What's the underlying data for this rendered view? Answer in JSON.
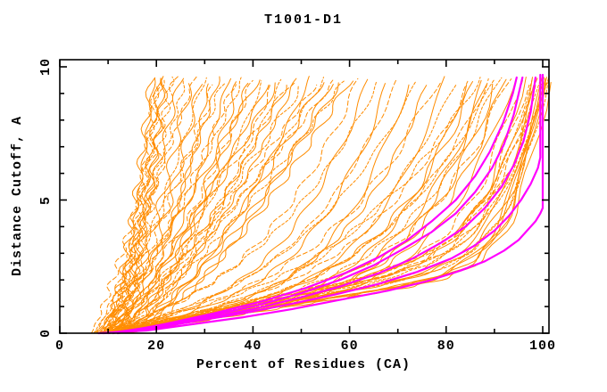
{
  "colors": {
    "background": "#ffffff",
    "axis": "#000000",
    "orange_curves": "#ff8c00",
    "magenta_curves": "#ff00ff"
  },
  "chart_data": {
    "type": "line",
    "title": "T1001-D1",
    "xlabel": "Percent of Residues (CA)",
    "ylabel": "Distance Cutoff, A",
    "xlim": [
      0,
      101.4
    ],
    "ylim": [
      0,
      10.3
    ],
    "x_ticks_major": [
      0,
      20,
      40,
      60,
      80,
      100
    ],
    "x_tick_labels": [
      "0",
      "20",
      "40",
      "60",
      "80",
      "100"
    ],
    "x_ticks_minor": [
      10,
      30,
      50,
      70,
      90
    ],
    "y_ticks_major": [
      0,
      5,
      10
    ],
    "y_tick_labels": [
      "0",
      "5",
      "10"
    ],
    "y_ticks_minor": [
      1,
      2,
      3,
      4,
      6,
      7,
      8,
      9
    ],
    "grid": false,
    "legend": "none",
    "cutoff_max": 9.6,
    "series": [
      {
        "name": "prediction-curves",
        "color": "#ff8c00",
        "line_width": 1,
        "param_format": [
          "x_at_cutoff0",
          "x_at_cutoff_max",
          "shape_exponent",
          "linear_mix"
        ],
        "curves": [
          [
            9.5,
            19.5,
            1.6,
            0
          ],
          [
            10,
            20,
            1.5,
            0
          ],
          [
            11,
            20.5,
            1.7,
            0
          ],
          [
            10.5,
            21,
            1.45,
            0
          ],
          [
            12,
            21.5,
            1.6,
            0
          ],
          [
            9,
            20.2,
            1.8,
            0
          ],
          [
            11.5,
            22,
            1.5,
            0
          ],
          [
            13,
            23,
            1.35,
            0
          ],
          [
            8.5,
            19,
            1.7,
            0
          ],
          [
            6.5,
            24,
            1.15,
            0
          ],
          [
            8,
            25,
            1.3,
            0
          ],
          [
            9,
            26,
            1.2,
            0
          ],
          [
            10,
            27,
            1.45,
            0
          ],
          [
            7.5,
            28,
            1.1,
            0
          ],
          [
            11,
            29,
            1.5,
            0
          ],
          [
            8.5,
            30,
            1.25,
            0
          ],
          [
            12,
            31,
            1.6,
            0
          ],
          [
            9.5,
            32,
            1.2,
            0
          ],
          [
            10.5,
            33,
            1.4,
            0
          ],
          [
            7,
            34,
            1.1,
            0
          ],
          [
            11.5,
            35,
            1.55,
            0
          ],
          [
            8,
            36,
            1.3,
            0
          ],
          [
            12.5,
            37,
            1.65,
            0
          ],
          [
            9,
            38,
            1.2,
            0
          ],
          [
            13,
            39,
            1.5,
            0
          ],
          [
            10,
            40,
            1.35,
            0
          ],
          [
            7.5,
            41,
            1.15,
            0
          ],
          [
            11,
            42,
            1.5,
            0
          ],
          [
            8.5,
            43,
            1.3,
            0
          ],
          [
            12,
            44,
            1.6,
            0
          ],
          [
            9.5,
            45,
            1.25,
            0
          ],
          [
            13.5,
            46,
            1.45,
            0
          ],
          [
            10.5,
            47,
            1.35,
            0
          ],
          [
            7,
            48,
            1.1,
            0
          ],
          [
            11.5,
            49,
            1.5,
            0
          ],
          [
            8,
            50,
            1.3,
            0
          ],
          [
            12.5,
            52,
            1.6,
            0
          ],
          [
            9,
            53,
            1.2,
            0
          ],
          [
            13,
            54,
            1.4,
            0
          ],
          [
            10,
            55,
            1.3,
            0
          ],
          [
            14,
            56,
            1.55,
            0
          ],
          [
            8.5,
            57,
            1.2,
            0
          ],
          [
            11,
            58,
            1.45,
            0
          ],
          [
            9.5,
            59,
            1.3,
            0
          ],
          [
            12,
            60,
            1.5,
            0
          ],
          [
            9,
            62,
            3.0,
            0.35
          ],
          [
            11,
            64,
            3.5,
            0.3
          ],
          [
            8,
            66,
            3.0,
            0.4
          ],
          [
            12,
            68,
            4.0,
            0.3
          ],
          [
            10,
            70,
            3.5,
            0.35
          ],
          [
            13,
            72,
            4.5,
            0.28
          ],
          [
            9.5,
            74,
            3.2,
            0.38
          ],
          [
            11.5,
            76,
            4.2,
            0.3
          ],
          [
            8.5,
            78,
            3.6,
            0.35
          ],
          [
            12.5,
            80,
            4.8,
            0.28
          ],
          [
            10.5,
            82,
            3.8,
            0.33
          ],
          [
            14,
            84,
            5.0,
            0.27
          ],
          [
            9,
            85,
            4.0,
            0.32
          ],
          [
            11,
            86,
            4.4,
            0.3
          ],
          [
            8,
            87,
            3.4,
            0.36
          ],
          [
            12,
            88,
            5.2,
            0.27
          ],
          [
            10,
            89,
            4.2,
            0.31
          ],
          [
            13,
            90,
            5.5,
            0.26
          ],
          [
            9.5,
            91,
            4.6,
            0.3
          ],
          [
            11.5,
            92,
            5.8,
            0.25
          ],
          [
            10,
            93,
            4.8,
            0.29
          ],
          [
            12.5,
            94,
            6.0,
            0.25
          ],
          [
            8.5,
            90,
            4.0,
            0.3
          ],
          [
            14,
            88,
            5.6,
            0.26
          ],
          [
            9,
            95,
            9,
            0.34
          ],
          [
            11,
            96,
            10,
            0.32
          ],
          [
            10,
            97,
            11,
            0.3
          ],
          [
            12,
            98,
            12,
            0.3
          ],
          [
            8,
            98.5,
            9,
            0.36
          ],
          [
            13,
            99,
            13,
            0.28
          ],
          [
            9.5,
            99.5,
            10,
            0.32
          ],
          [
            11.5,
            100,
            14,
            0.28
          ],
          [
            10.5,
            100,
            8,
            0.36
          ],
          [
            12.5,
            100.5,
            11,
            0.3
          ],
          [
            8.5,
            101,
            12,
            0.3
          ],
          [
            13.5,
            101,
            14,
            0.27
          ],
          [
            9,
            99,
            10,
            0.33
          ],
          [
            14,
            100,
            13,
            0.28
          ],
          [
            10,
            101.3,
            9,
            0.34
          ],
          [
            11,
            98,
            8,
            0.35
          ],
          [
            12,
            96.5,
            9,
            0.33
          ],
          [
            10.5,
            99.8,
            15,
            0.27
          ],
          [
            9.8,
            100.8,
            12,
            0.3
          ]
        ]
      },
      {
        "name": "highlighted-model-curves",
        "color": "#ff00ff",
        "line_width": 2.2,
        "points_format": [
          "percent",
          "cutoff"
        ],
        "curves": [
          [
            [
              8,
              0
            ],
            [
              18,
              0.1
            ],
            [
              28,
              0.35
            ],
            [
              38,
              0.6
            ],
            [
              48,
              0.9
            ],
            [
              58,
              1.25
            ],
            [
              68,
              1.6
            ],
            [
              76,
              1.95
            ],
            [
              83,
              2.35
            ],
            [
              88,
              2.7
            ],
            [
              92,
              3.1
            ],
            [
              95,
              3.5
            ],
            [
              97,
              3.9
            ],
            [
              98.5,
              4.2
            ],
            [
              99.5,
              4.5
            ],
            [
              100,
              4.7
            ],
            [
              100,
              9.7
            ]
          ],
          [
            [
              9,
              0
            ],
            [
              18,
              0.15
            ],
            [
              28,
              0.45
            ],
            [
              38,
              0.75
            ],
            [
              48,
              1.1
            ],
            [
              57,
              1.45
            ],
            [
              66,
              1.85
            ],
            [
              74,
              2.3
            ],
            [
              81,
              2.8
            ],
            [
              86,
              3.3
            ],
            [
              90,
              3.85
            ],
            [
              93,
              4.4
            ],
            [
              95.5,
              5.0
            ],
            [
              97.5,
              5.6
            ],
            [
              99,
              6.2
            ],
            [
              99.5,
              6.6
            ],
            [
              99.5,
              9.7
            ]
          ],
          [
            [
              10,
              0
            ],
            [
              20,
              0.25
            ],
            [
              30,
              0.55
            ],
            [
              40,
              0.9
            ],
            [
              49,
              1.3
            ],
            [
              58,
              1.75
            ],
            [
              66,
              2.25
            ],
            [
              73,
              2.8
            ],
            [
              79,
              3.4
            ],
            [
              84,
              4.0
            ],
            [
              88,
              4.7
            ],
            [
              91.5,
              5.5
            ],
            [
              94,
              6.3
            ],
            [
              96,
              7.2
            ],
            [
              97.5,
              8.3
            ],
            [
              98.5,
              9.6
            ]
          ],
          [
            [
              11,
              0
            ],
            [
              21,
              0.3
            ],
            [
              31,
              0.65
            ],
            [
              41,
              1.05
            ],
            [
              50,
              1.5
            ],
            [
              58,
              2.0
            ],
            [
              65,
              2.55
            ],
            [
              71,
              3.15
            ],
            [
              77,
              3.8
            ],
            [
              82,
              4.5
            ],
            [
              86,
              5.3
            ],
            [
              89.5,
              6.2
            ],
            [
              92,
              7.1
            ],
            [
              94,
              8.2
            ],
            [
              95.8,
              9.6
            ]
          ],
          [
            [
              12,
              0
            ],
            [
              22,
              0.35
            ],
            [
              32,
              0.75
            ],
            [
              42,
              1.2
            ],
            [
              51,
              1.7
            ],
            [
              59,
              2.25
            ],
            [
              66,
              2.85
            ],
            [
              72,
              3.5
            ],
            [
              77,
              4.2
            ],
            [
              82,
              5.0
            ],
            [
              86,
              5.9
            ],
            [
              89,
              6.8
            ],
            [
              91.8,
              7.9
            ],
            [
              93.8,
              9.0
            ],
            [
              94.6,
              9.6
            ]
          ]
        ]
      }
    ]
  }
}
